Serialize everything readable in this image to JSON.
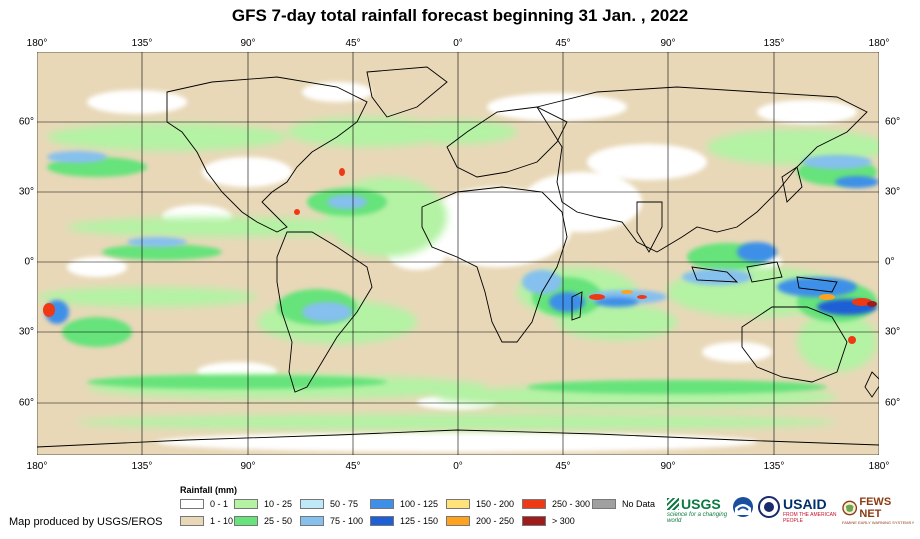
{
  "title": "GFS 7-day total rainfall forecast beginning 31 Jan. , 2022",
  "lon_labels": [
    "180°",
    "135°",
    "90°",
    "45°",
    "0°",
    "45°",
    "90°",
    "135°",
    "180°"
  ],
  "lat_labels_left": [
    "60°",
    "30°",
    "0°",
    "30°",
    "60°"
  ],
  "lat_labels_right": [
    "60°",
    "30°",
    "0°",
    "30°",
    "60°"
  ],
  "legend": {
    "title": "Rainfall (mm)",
    "items": [
      {
        "label": "0 - 1",
        "color": "#ffffff"
      },
      {
        "label": "1 - 10",
        "color": "#e8d8b8"
      },
      {
        "label": "10 - 25",
        "color": "#b4f2a4"
      },
      {
        "label": "25 - 50",
        "color": "#66e37a"
      },
      {
        "label": "50 - 75",
        "color": "#bfe9f7"
      },
      {
        "label": "75 - 100",
        "color": "#85c0ee"
      },
      {
        "label": "100 - 125",
        "color": "#3d8fe8"
      },
      {
        "label": "125 - 150",
        "color": "#1f5fd6"
      },
      {
        "label": "150 - 200",
        "color": "#ffe27a"
      },
      {
        "label": "200 - 250",
        "color": "#ffa21f"
      },
      {
        "label": "250 - 300",
        "color": "#ee3a14"
      },
      {
        "label": "> 300",
        "color": "#9e1c1c"
      },
      {
        "label": "No Data",
        "color": "#a0a0a0"
      }
    ]
  },
  "credit": "Map produced by USGS/EROS",
  "logos": {
    "usgs": "USGS",
    "usgs_tagline": "science for a changing world",
    "usaid": "USAID",
    "usaid_tagline": "FROM THE AMERICAN PEOPLE",
    "fewsnet": "FEWS NET",
    "fewsnet_tagline": "FAMINE EARLY WARNING SYSTEMS NETWORK"
  }
}
